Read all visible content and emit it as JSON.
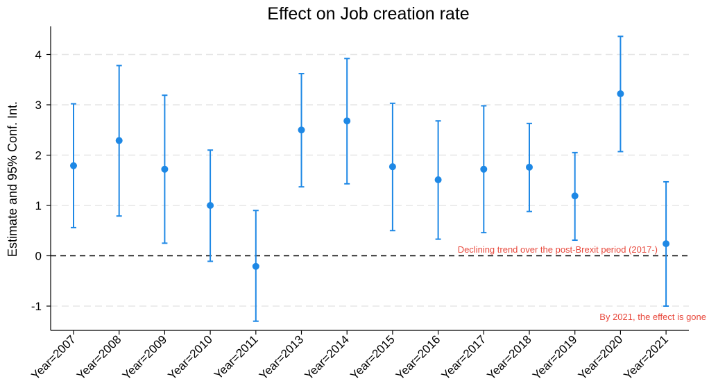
{
  "chart_data": {
    "type": "scatter",
    "title": "Effect on Job creation rate",
    "xlabel": "",
    "ylabel": "Estimate and 95% Conf. Int.",
    "ylim": [
      -1.5,
      4.6
    ],
    "yticks": [
      -1,
      0,
      1,
      2,
      3,
      4
    ],
    "ytick_labels": [
      "-1",
      "0",
      "1",
      "2",
      "3",
      "4"
    ],
    "grid": true,
    "reference_line": {
      "y": 0,
      "style": "dashed"
    },
    "categories": [
      "Year=2007",
      "Year=2008",
      "Year=2009",
      "Year=2010",
      "Year=2011",
      "Year=2013",
      "Year=2014",
      "Year=2015",
      "Year=2016",
      "Year=2017",
      "Year=2018",
      "Year=2019",
      "Year=2020",
      "Year=2021"
    ],
    "series": [
      {
        "estimate": [
          1.79,
          2.29,
          1.72,
          1.0,
          -0.21,
          2.5,
          2.68,
          1.77,
          1.51,
          1.72,
          1.76,
          1.19,
          3.22,
          0.24
        ],
        "ci_low": [
          0.56,
          0.79,
          0.25,
          -0.11,
          -1.3,
          1.37,
          1.43,
          0.5,
          0.33,
          0.46,
          0.88,
          0.31,
          2.07,
          -1.0
        ],
        "ci_high": [
          3.02,
          3.78,
          3.19,
          2.1,
          0.9,
          3.62,
          3.92,
          3.03,
          2.68,
          2.98,
          2.63,
          2.05,
          4.36,
          1.47
        ]
      }
    ],
    "annotations": [
      {
        "text": "Declining trend over the post-Brexit period (2017-)"
      },
      {
        "text": "By 2021, the effect is gone"
      }
    ],
    "colors": {
      "series": "#1e88e5",
      "annotation": "#e8483c",
      "grid": "#e6e6e6",
      "axis": "#000000"
    }
  }
}
